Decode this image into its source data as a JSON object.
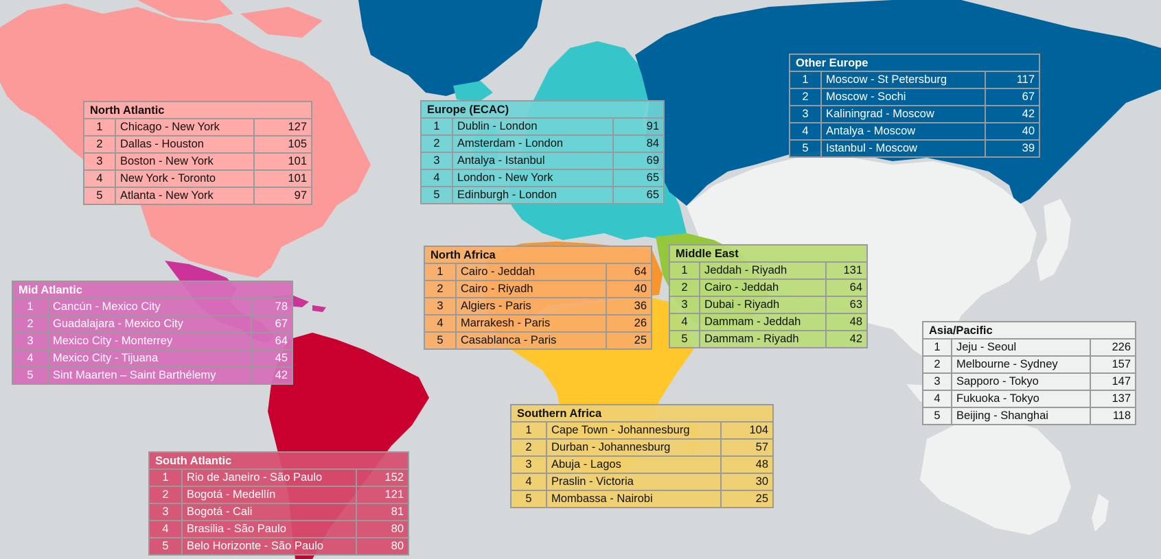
{
  "colors": {
    "ocean": "#d4d8da",
    "north_atlantic": "#fb9a99",
    "mid_atlantic": "#cc3399",
    "south_atlantic": "#c9002f",
    "europe_ecac": "#36c6c9",
    "other_europe": "#00629b",
    "north_africa": "#f7962e",
    "middle_east": "#94c73b",
    "southern_africa": "#ffc72c",
    "asia_pacific": "#f0f1f1"
  },
  "regions": [
    {
      "id": "north_atlantic",
      "title": "North Atlantic",
      "bg": "rgba(255,172,170,0.92)",
      "text_color": "#111111",
      "rows": [
        {
          "rank": "1",
          "route": "Chicago - New York",
          "value": 127
        },
        {
          "rank": "2",
          "route": "Dallas - Houston",
          "value": 105
        },
        {
          "rank": "3",
          "route": "Boston - New York",
          "value": 101
        },
        {
          "rank": "4",
          "route": "New York - Toronto",
          "value": 101
        },
        {
          "rank": "5",
          "route": "Atlanta - New York",
          "value": 97
        }
      ]
    },
    {
      "id": "europe_ecac",
      "title": "Europe (ECAC)",
      "bg": "rgba(110,212,214,0.92)",
      "text_color": "#111111",
      "rows": [
        {
          "rank": "1",
          "route": "Dublin - London",
          "value": 91
        },
        {
          "rank": "2",
          "route": "Amsterdam - London",
          "value": 84
        },
        {
          "rank": "3",
          "route": "Antalya - Istanbul",
          "value": 69
        },
        {
          "rank": "4",
          "route": "London - New York",
          "value": 65
        },
        {
          "rank": "5",
          "route": "Edinburgh - London",
          "value": 65
        }
      ]
    },
    {
      "id": "other_europe",
      "title": "Other Europe",
      "bg": "rgba(0,98,155,0.95)",
      "text_color": "#ffffff",
      "rows": [
        {
          "rank": "1",
          "route": "Moscow - St Petersburg",
          "value": 117
        },
        {
          "rank": "2",
          "route": "Moscow - Sochi",
          "value": 67
        },
        {
          "rank": "3",
          "route": "Kaliningrad - Moscow",
          "value": 42
        },
        {
          "rank": "4",
          "route": "Antalya - Moscow",
          "value": 40
        },
        {
          "rank": "5",
          "route": "Istanbul - Moscow",
          "value": 39
        }
      ]
    },
    {
      "id": "mid_atlantic",
      "title": "Mid Atlantic",
      "bg": "rgba(214,112,186,0.95)",
      "text_color": "#ffffff",
      "rows": [
        {
          "rank": "1",
          "route": "Cancún - Mexico City",
          "value": 78
        },
        {
          "rank": "2",
          "route": "Guadalajara - Mexico City",
          "value": 67
        },
        {
          "rank": "3",
          "route": "Mexico City - Monterrey",
          "value": 64
        },
        {
          "rank": "4",
          "route": "Mexico City - Tijuana",
          "value": 45
        },
        {
          "rank": "5",
          "route": "Sint Maarten – Saint Barthélemy",
          "value": 42
        }
      ]
    },
    {
      "id": "north_africa",
      "title": "North Africa",
      "bg": "rgba(250,172,100,0.93)",
      "text_color": "#111111",
      "rows": [
        {
          "rank": "1",
          "route": "Cairo - Jeddah",
          "value": 64
        },
        {
          "rank": "2",
          "route": "Cairo - Riyadh",
          "value": 40
        },
        {
          "rank": "3",
          "route": "Algiers - Paris",
          "value": 36
        },
        {
          "rank": "4",
          "route": "Marrakesh - Paris",
          "value": 26
        },
        {
          "rank": "5",
          "route": "Casablanca - Paris",
          "value": 25
        }
      ]
    },
    {
      "id": "middle_east",
      "title": "Middle East",
      "bg": "rgba(186,220,120,0.93)",
      "text_color": "#111111",
      "rows": [
        {
          "rank": "1",
          "route": "Jeddah - Riyadh",
          "value": 131
        },
        {
          "rank": "2",
          "route": "Cairo - Jeddah",
          "value": 64
        },
        {
          "rank": "3",
          "route": "Dubai - Riyadh",
          "value": 63
        },
        {
          "rank": "4",
          "route": "Dammam - Jeddah",
          "value": 48
        },
        {
          "rank": "5",
          "route": "Dammam - Riyadh",
          "value": 42
        }
      ]
    },
    {
      "id": "asia_pacific",
      "title": "Asia/Pacific",
      "bg": "rgba(240,241,241,0.97)",
      "text_color": "#111111",
      "rows": [
        {
          "rank": "1",
          "route": "Jeju - Seoul",
          "value": 226
        },
        {
          "rank": "2",
          "route": "Melbourne - Sydney",
          "value": 157
        },
        {
          "rank": "3",
          "route": "Sapporo - Tokyo",
          "value": 147
        },
        {
          "rank": "4",
          "route": "Fukuoka - Tokyo",
          "value": 137
        },
        {
          "rank": "5",
          "route": "Beijing - Shanghai",
          "value": 118
        }
      ]
    },
    {
      "id": "southern_africa",
      "title": "Southern Africa",
      "bg": "rgba(240,208,110,0.95)",
      "text_color": "#111111",
      "rows": [
        {
          "rank": "1",
          "route": "Cape Town - Johannesburg",
          "value": 104
        },
        {
          "rank": "2",
          "route": "Durban - Johannesburg",
          "value": 57
        },
        {
          "rank": "3",
          "route": "Abuja - Lagos",
          "value": 48
        },
        {
          "rank": "4",
          "route": "Praslin - Victoria",
          "value": 30
        },
        {
          "rank": "5",
          "route": "Mombassa - Nairobi",
          "value": 25
        }
      ]
    },
    {
      "id": "south_atlantic",
      "title": "South Atlantic",
      "bg": "rgba(214,78,110,0.93)",
      "text_color": "#ffffff",
      "rows": [
        {
          "rank": "1",
          "route": "Rio de Janeiro - São Paulo",
          "value": 152
        },
        {
          "rank": "2",
          "route": "Bogotá - Medellín",
          "value": 121
        },
        {
          "rank": "3",
          "route": "Bogotá - Cali",
          "value": 81
        },
        {
          "rank": "4",
          "route": "Brasilia - São Paulo",
          "value": 80
        },
        {
          "rank": "5",
          "route": "Belo Horizonte - São Paulo",
          "value": 80
        }
      ]
    }
  ]
}
